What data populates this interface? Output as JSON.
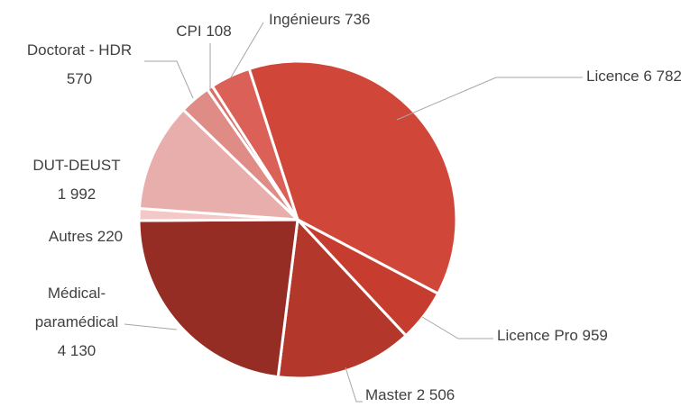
{
  "chart_data": {
    "type": "pie",
    "categories": [
      "Licence",
      "Licence Pro",
      "Master",
      "Médical-paramédical",
      "Autres",
      "DUT-DEUST",
      "Doctorat - HDR",
      "CPI",
      "Ingénieurs"
    ],
    "values": [
      6782,
      959,
      2506,
      4130,
      220,
      1992,
      570,
      108,
      736
    ],
    "value_labels": [
      "6 782",
      "959",
      "2 506",
      "4 130",
      "220",
      "1 992",
      "570",
      "108",
      "736"
    ],
    "colors": [
      "#d0473a",
      "#c63d30",
      "#b3372b",
      "#952d24",
      "#f2c9c6",
      "#e8aeac",
      "#df8b86",
      "#d9706a",
      "#da6058"
    ]
  }
}
